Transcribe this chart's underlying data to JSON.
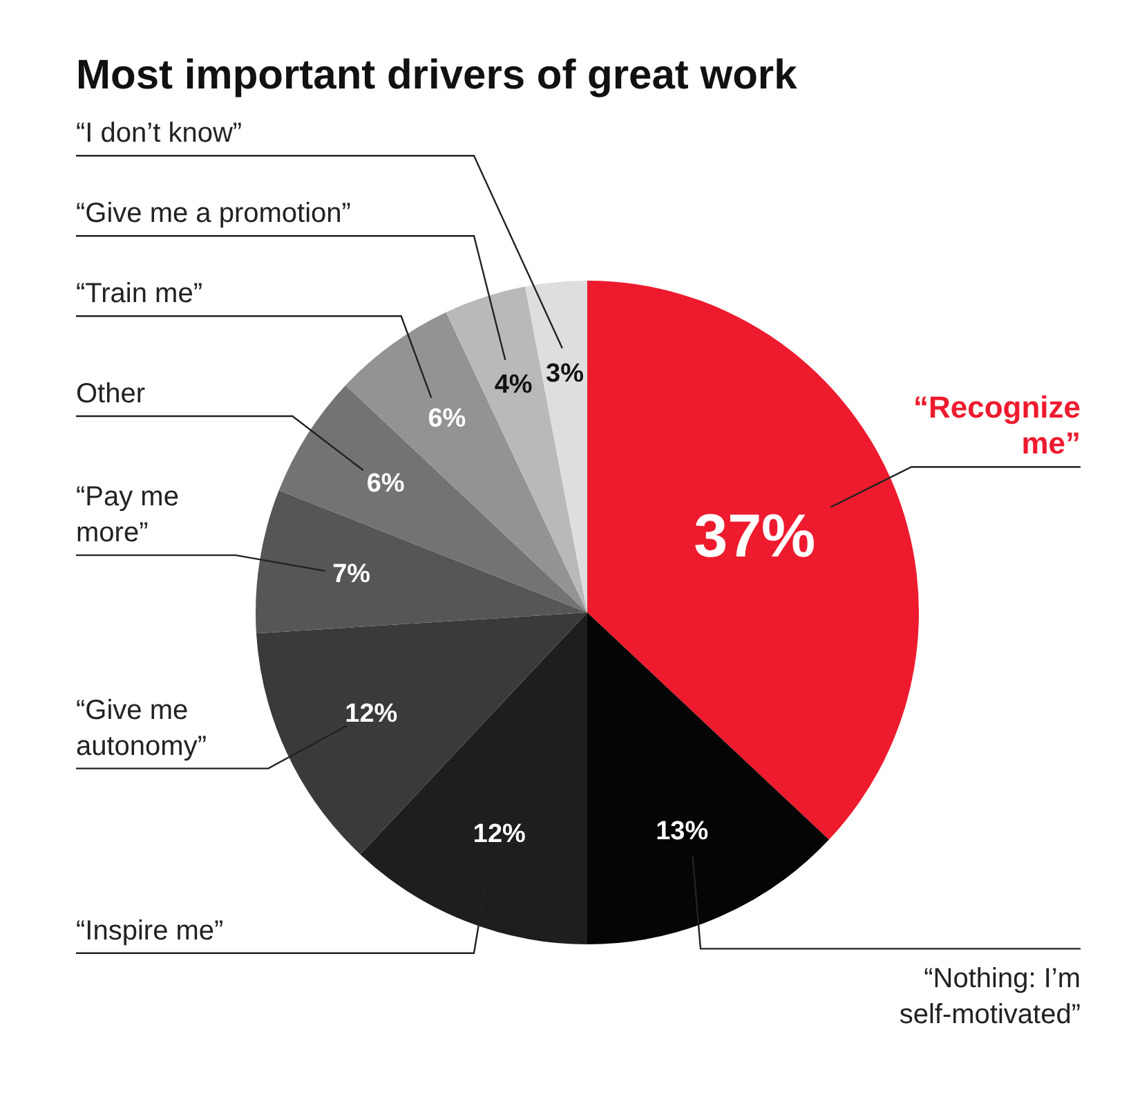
{
  "chart_data": {
    "type": "pie",
    "title": "Most important drivers of great work",
    "categories": [
      "“Recognize me”",
      "“Nothing: I’m self-motivated”",
      "“Inspire me”",
      "“Give me autonomy”",
      "“Pay me more”",
      "Other",
      "“Train me”",
      "“Give me a promotion”",
      "“I don’t know”"
    ],
    "values": [
      37,
      13,
      12,
      12,
      7,
      6,
      6,
      4,
      3
    ],
    "colors": [
      "#ee1a2e",
      "#050505",
      "#1e1e1e",
      "#3a3a3a",
      "#565656",
      "#737373",
      "#939393",
      "#b9b9b9",
      "#dedede"
    ],
    "value_labels": [
      "37%",
      "13%",
      "12%",
      "12%",
      "7%",
      "6%",
      "6%",
      "4%",
      "3%"
    ],
    "legend": false
  }
}
